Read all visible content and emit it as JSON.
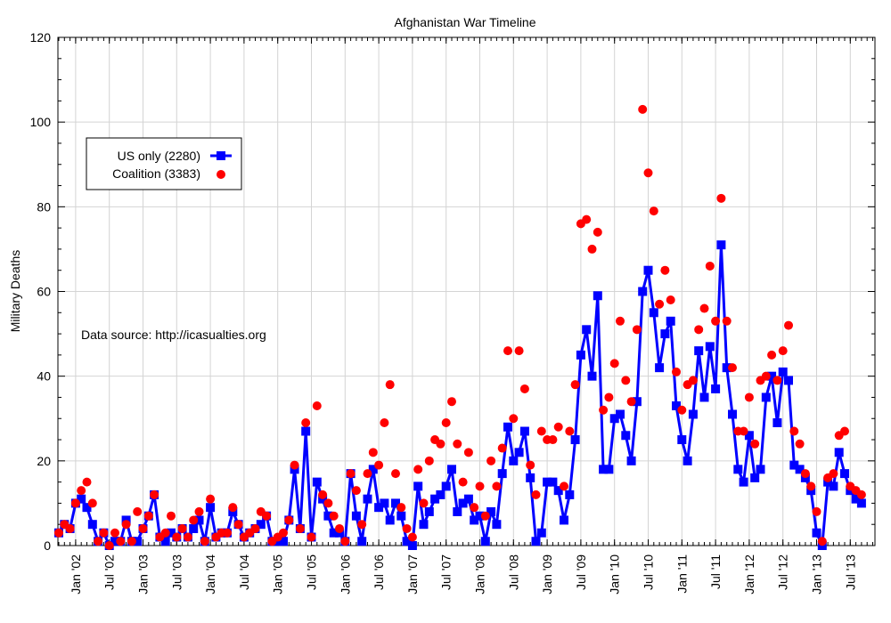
{
  "chart_data": {
    "type": "line",
    "title": "Afghanistan War Timeline",
    "xlabel": "",
    "ylabel": "Military Deaths",
    "ylim": [
      0,
      120
    ],
    "yticks": [
      0,
      20,
      40,
      60,
      80,
      100,
      120
    ],
    "grid": true,
    "x_start": "2001-10",
    "x_end": "2013-09",
    "xtick_labels": [
      "Jan '02",
      "Jul '02",
      "Jan '03",
      "Jul '03",
      "Jan '04",
      "Jul '04",
      "Jan '05",
      "Jul '05",
      "Jan '06",
      "Jul '06",
      "Jan '07",
      "Jul '07",
      "Jan '08",
      "Jul '08",
      "Jan '09",
      "Jul '09",
      "Jan '10",
      "Jul '10",
      "Jan '11",
      "Jul '11",
      "Jan '12",
      "Jul '12",
      "Jan '13",
      "Jul '13"
    ],
    "annotation": "Data source: http://icasualties.org",
    "legend_position": "upper-left",
    "series": [
      {
        "name": "US only (2280)",
        "color": "#0000ff",
        "marker": "square",
        "style": "line+markers",
        "values": [
          3,
          5,
          4,
          10,
          11,
          9,
          5,
          1,
          3,
          0,
          1,
          1,
          6,
          1,
          1,
          4,
          7,
          12,
          2,
          1,
          3,
          2,
          4,
          2,
          4,
          6,
          1,
          9,
          2,
          3,
          3,
          8,
          5,
          2,
          3,
          4,
          5,
          7,
          1,
          1,
          1,
          6,
          18,
          4,
          27,
          2,
          15,
          11,
          7,
          3,
          3,
          1,
          17,
          7,
          1,
          11,
          18,
          9,
          10,
          6,
          10,
          7,
          1,
          0,
          14,
          5,
          8,
          11,
          12,
          14,
          18,
          8,
          10,
          11,
          6,
          7,
          1,
          8,
          5,
          17,
          28,
          20,
          22,
          27,
          16,
          1,
          3,
          15,
          15,
          13,
          6,
          12,
          25,
          45,
          51,
          40,
          59,
          18,
          18,
          30,
          31,
          26,
          20,
          34,
          60,
          65,
          55,
          42,
          50,
          53,
          33,
          25,
          20,
          31,
          46,
          35,
          47,
          37,
          71,
          42,
          31,
          18,
          15,
          26,
          16,
          18,
          35,
          40,
          29,
          41,
          39,
          19,
          18,
          16,
          13,
          3,
          0,
          15,
          14,
          22,
          17,
          13,
          11,
          10
        ]
      },
      {
        "name": "Coalition (3383)",
        "color": "#ff0000",
        "marker": "circle",
        "style": "markers",
        "values": [
          3,
          5,
          4,
          10,
          13,
          15,
          10,
          1,
          3,
          0,
          3,
          1,
          5,
          1,
          8,
          4,
          7,
          12,
          2,
          3,
          7,
          2,
          4,
          2,
          6,
          8,
          1,
          11,
          2,
          3,
          3,
          9,
          5,
          2,
          3,
          4,
          8,
          7,
          1,
          2,
          3,
          6,
          19,
          4,
          29,
          2,
          33,
          12,
          10,
          7,
          4,
          1,
          17,
          13,
          5,
          17,
          22,
          19,
          29,
          38,
          17,
          9,
          4,
          2,
          18,
          10,
          20,
          25,
          24,
          29,
          34,
          24,
          15,
          22,
          9,
          14,
          7,
          20,
          14,
          23,
          46,
          30,
          46,
          37,
          19,
          12,
          27,
          25,
          25,
          28,
          14,
          27,
          38,
          76,
          77,
          70,
          74,
          32,
          35,
          43,
          53,
          39,
          34,
          51,
          103,
          88,
          79,
          57,
          65,
          58,
          41,
          32,
          38,
          39,
          51,
          56,
          66,
          53,
          82,
          53,
          42,
          27,
          27,
          35,
          24,
          39,
          40,
          45,
          39,
          46,
          52,
          27,
          24,
          17,
          14,
          8,
          1,
          16,
          17,
          26,
          27,
          14,
          13,
          12
        ]
      }
    ]
  }
}
